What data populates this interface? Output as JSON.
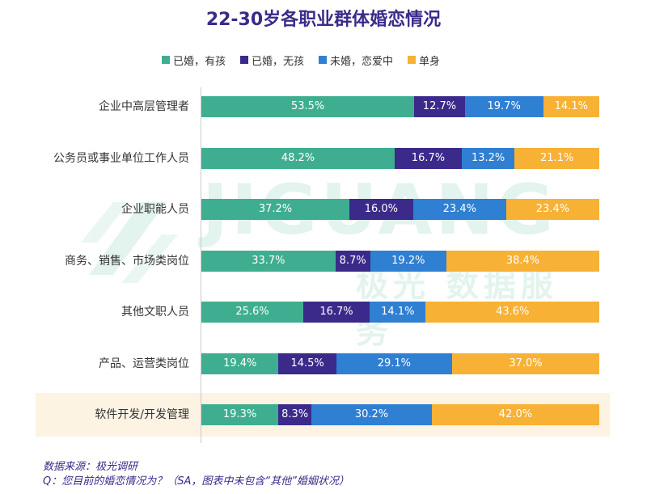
{
  "chart_data": {
    "type": "bar",
    "orientation": "horizontal",
    "stacked": true,
    "title": "22-30岁各职业群体婚恋情况",
    "legend_position": "top",
    "categories": [
      "企业中高层管理者",
      "公务员或事业单位工作人员",
      "企业职能人员",
      "商务、销售、市场类岗位",
      "其他文职人员",
      "产品、运营类岗位",
      "软件开发/开发管理"
    ],
    "highlighted_category": "软件开发/开发管理",
    "series": [
      {
        "name": "已婚，有孩",
        "color": "#3fae90",
        "values": [
          53.5,
          48.2,
          37.2,
          33.7,
          25.6,
          19.4,
          19.3
        ]
      },
      {
        "name": "已婚，无孩",
        "color": "#3b2a8a",
        "values": [
          12.7,
          16.7,
          16.0,
          8.7,
          16.7,
          14.5,
          8.3
        ]
      },
      {
        "name": "未婚，恋爱中",
        "color": "#2f7fd3",
        "values": [
          19.7,
          13.2,
          23.4,
          19.2,
          14.1,
          29.1,
          30.2
        ]
      },
      {
        "name": "单身",
        "color": "#f7b135",
        "values": [
          14.1,
          21.1,
          23.4,
          38.4,
          43.6,
          37.0,
          42.0
        ]
      }
    ],
    "value_suffix": "%"
  },
  "watermark": {
    "latin": "JIGUANG",
    "chinese": "极光 数据服务"
  },
  "notes": {
    "source": "数据来源：极光调研",
    "question": "Q：您目前的婚恋情况为？（SA，图表中未包含“其他”婚姻状况）"
  }
}
